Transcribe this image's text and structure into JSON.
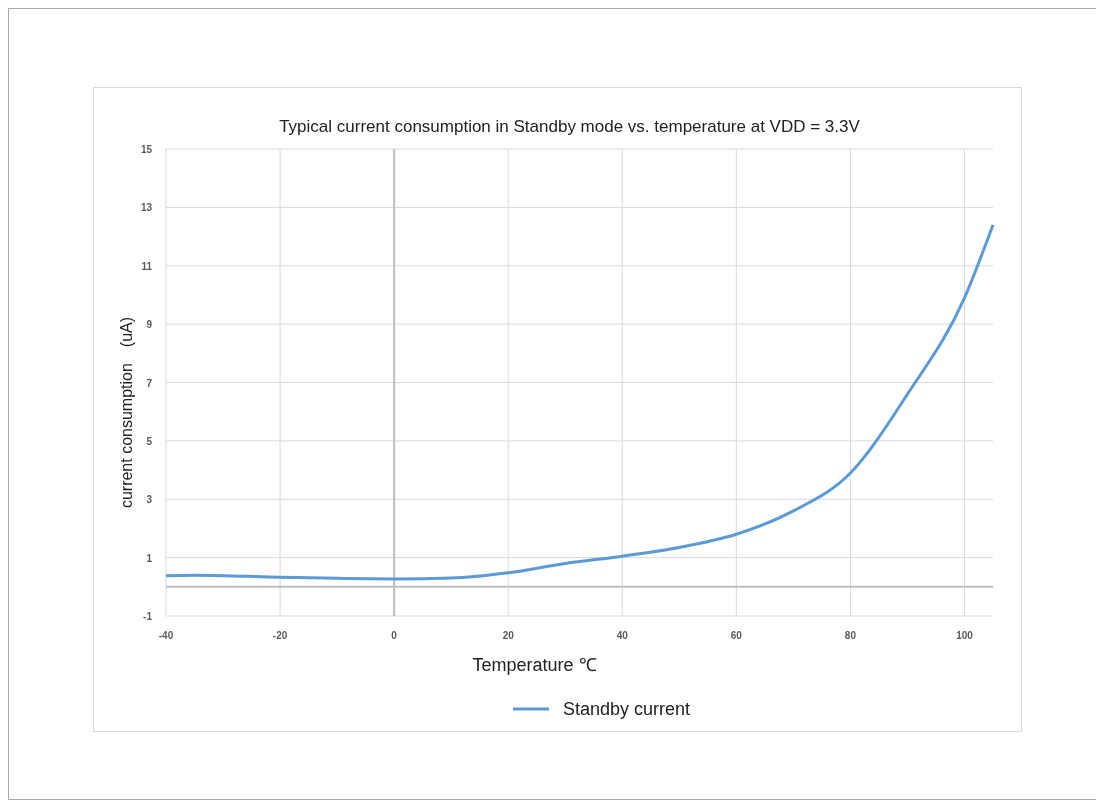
{
  "chart_data": {
    "type": "line",
    "title": "Typical current consumption in Standby mode vs. temperature at VDD = 3.3V",
    "xlabel": "Temperature ℃",
    "ylabel": "current consumption　(uA)",
    "xlim": [
      -40,
      105
    ],
    "xticks": [
      -40,
      -20,
      0,
      20,
      40,
      60,
      80,
      100
    ],
    "ylim": [
      -1,
      15
    ],
    "yticks": [
      -1,
      1,
      3,
      5,
      7,
      9,
      11,
      13,
      15
    ],
    "grid": true,
    "legend": "bottom",
    "line_style": "solid",
    "series": [
      {
        "name": "Standby current",
        "color": "#5b9bd5",
        "x": [
          -40,
          -35,
          -20,
          -10,
          0,
          10,
          20,
          30,
          40,
          50,
          60,
          70,
          80,
          90,
          100,
          105
        ],
        "values": [
          0.38,
          0.4,
          0.33,
          0.29,
          0.27,
          0.3,
          0.48,
          0.8,
          1.05,
          1.35,
          1.8,
          2.6,
          3.9,
          6.6,
          9.9,
          12.4
        ]
      }
    ]
  }
}
